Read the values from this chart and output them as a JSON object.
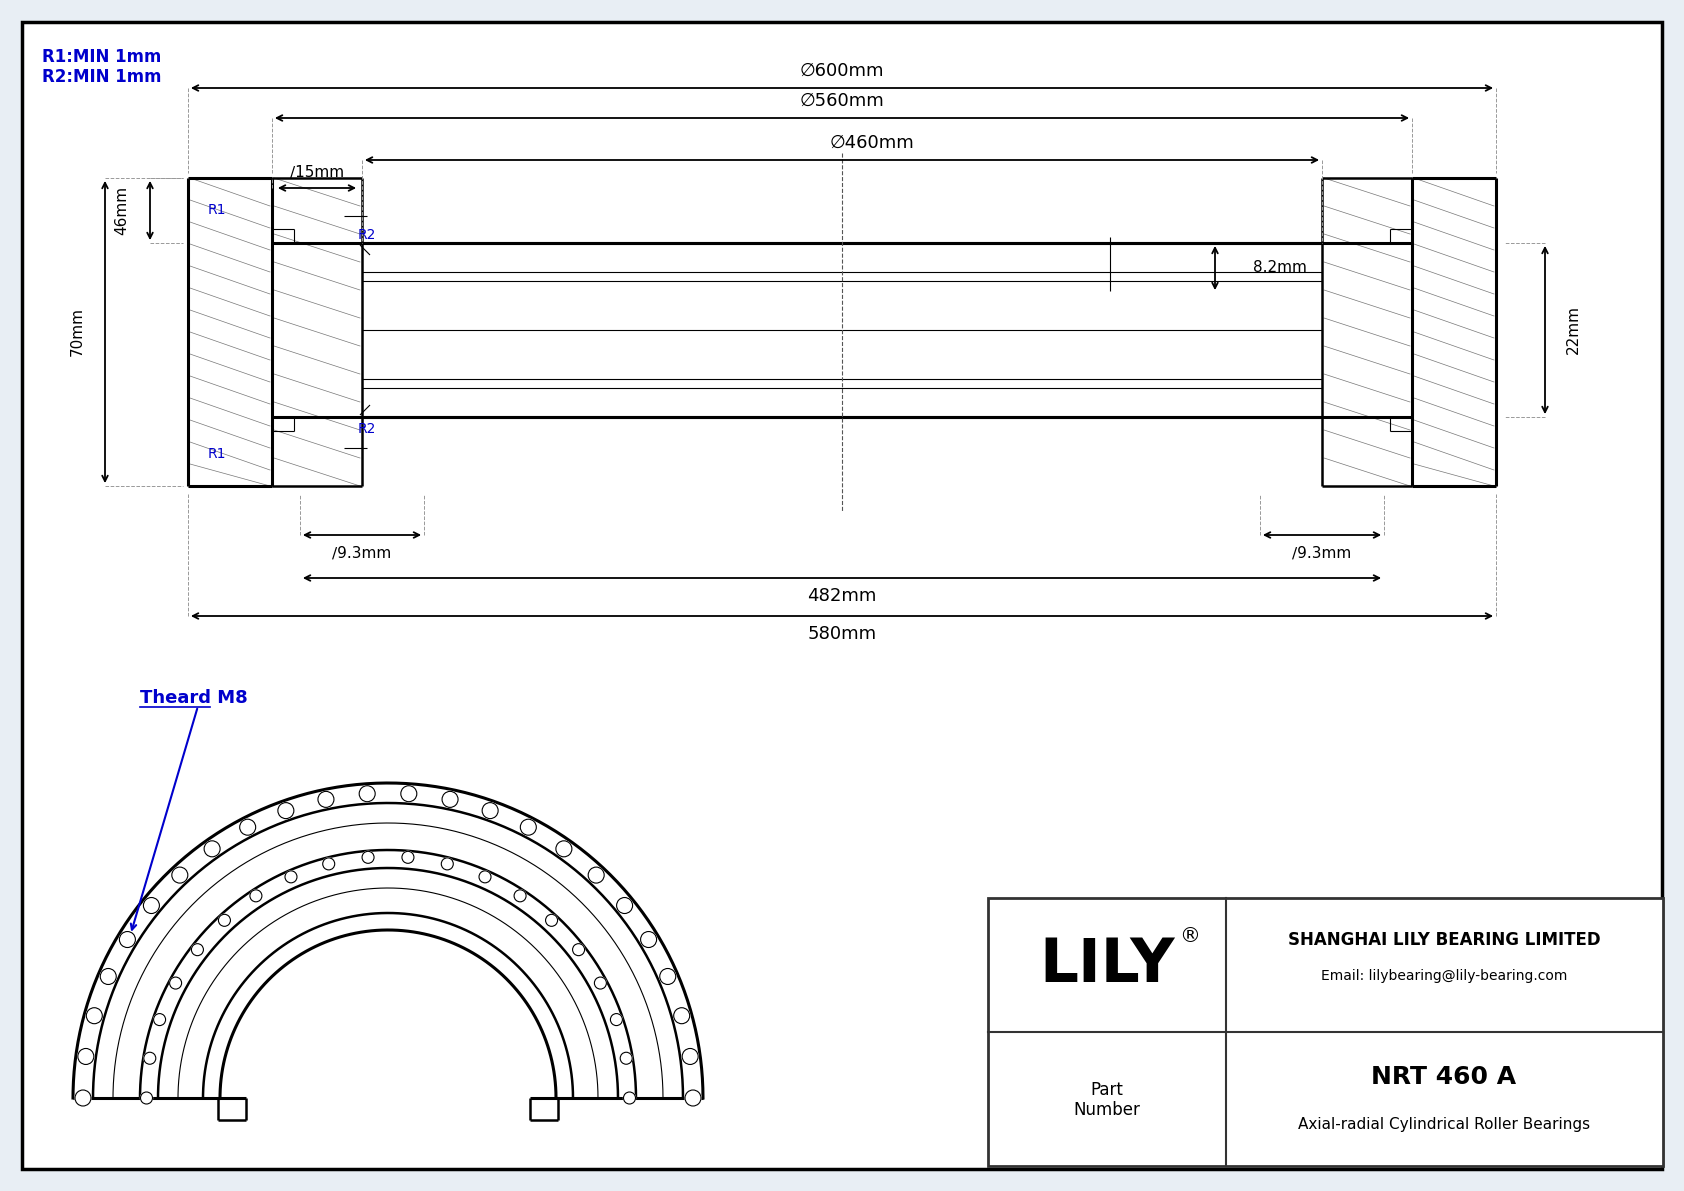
{
  "bg_color": "#e8eef4",
  "drawing_bg": "#ffffff",
  "border_color": "#000000",
  "line_color": "#000000",
  "blue_color": "#0000cc",
  "dim_color": "#000000",
  "company": "SHANGHAI LILY BEARING LIMITED",
  "email": "Email: lilybearing@lily-bearing.com",
  "part_number": "NRT 460 A",
  "part_type": "Axial-radial Cylindrical Roller Bearings",
  "part_label": "Part\nNumber",
  "r_note_line1": "R1:MIN 1mm",
  "r_note_line2": "R2:MIN 1mm",
  "thread_label": "Theard M8",
  "d600": "∅600mm",
  "d560": "∅560mm",
  "d460": "∅460mm",
  "d15": "∕15mm",
  "d9_3": "∕9.3mm",
  "h46": "46mm",
  "h70": "70mm",
  "h22": "22mm",
  "w8_2": "8.2mm",
  "w482": "482mm",
  "w580": "580mm",
  "R1": "R1",
  "R2": "R2"
}
